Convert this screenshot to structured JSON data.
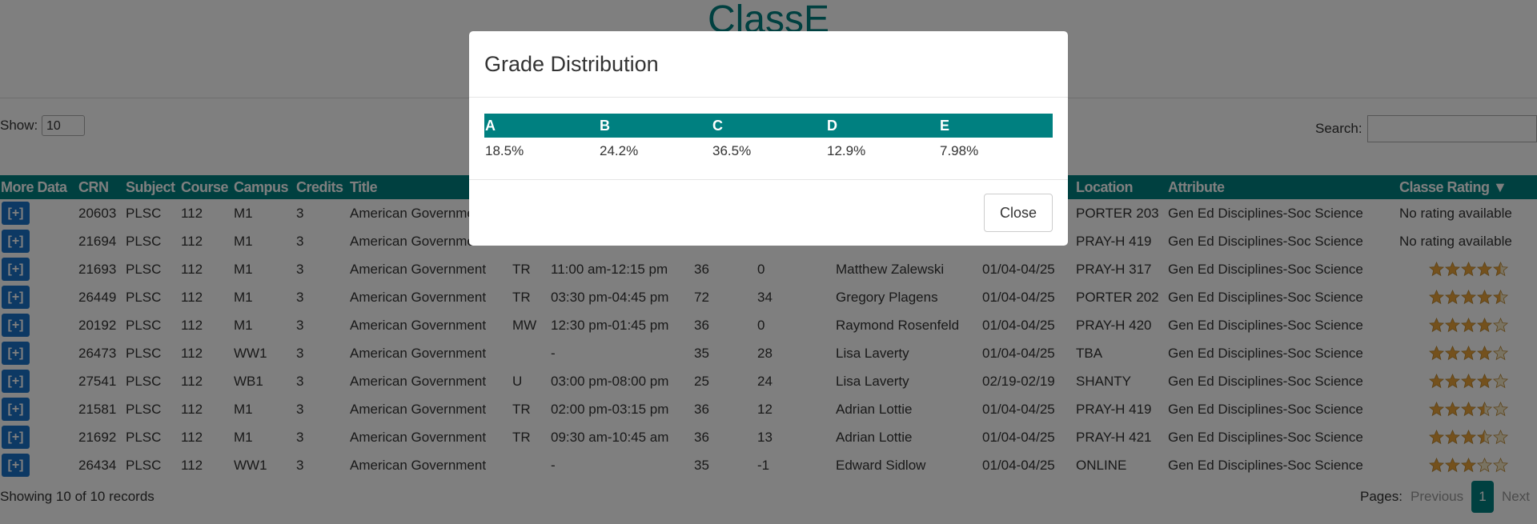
{
  "header": {
    "title": "ClassE"
  },
  "controls": {
    "show_label": "Show:",
    "show_value": "10",
    "search_label": "Search:"
  },
  "table": {
    "columns": [
      "More Data",
      "CRN",
      "Subject",
      "Course",
      "Campus",
      "Credits",
      "Title",
      null,
      null,
      null,
      null,
      null,
      null,
      "Location",
      "Attribute",
      "Classe Rating ▼"
    ],
    "rows": [
      [
        "[+]",
        "20603",
        "PLSC",
        "112",
        "M1",
        "3",
        "American Government",
        null,
        null,
        null,
        null,
        null,
        null,
        "PORTER 203",
        "Gen Ed Disciplines-Soc Science",
        "No rating available"
      ],
      [
        "[+]",
        "21694",
        "PLSC",
        "112",
        "M1",
        "3",
        "American Government",
        null,
        null,
        null,
        null,
        null,
        null,
        "PRAY-H 419",
        "Gen Ed Disciplines-Soc Science",
        "No rating available"
      ],
      [
        "[+]",
        "21693",
        "PLSC",
        "112",
        "M1",
        "3",
        "American Government",
        "TR",
        "11:00 am-12:15 pm",
        "36",
        "0",
        "Matthew Zalewski",
        "01/04-04/25",
        "PRAY-H 317",
        "Gen Ed Disciplines-Soc Science",
        4.5
      ],
      [
        "[+]",
        "26449",
        "PLSC",
        "112",
        "M1",
        "3",
        "American Government",
        "TR",
        "03:30 pm-04:45 pm",
        "72",
        "34",
        "Gregory Plagens",
        "01/04-04/25",
        "PORTER 202",
        "Gen Ed Disciplines-Soc Science",
        4.5
      ],
      [
        "[+]",
        "20192",
        "PLSC",
        "112",
        "M1",
        "3",
        "American Government",
        "MW",
        "12:30 pm-01:45 pm",
        "36",
        "0",
        "Raymond Rosenfeld",
        "01/04-04/25",
        "PRAY-H 420",
        "Gen Ed Disciplines-Soc Science",
        4
      ],
      [
        "[+]",
        "26473",
        "PLSC",
        "112",
        "WW1",
        "3",
        "American Government",
        null,
        "-",
        "35",
        "28",
        "Lisa Laverty",
        "01/04-04/25",
        "TBA",
        "Gen Ed Disciplines-Soc Science",
        4
      ],
      [
        "[+]",
        "27541",
        "PLSC",
        "112",
        "WB1",
        "3",
        "American Government",
        "U",
        "03:00 pm-08:00 pm",
        "25",
        "24",
        "Lisa Laverty",
        "02/19-02/19",
        "SHANTY",
        "Gen Ed Disciplines-Soc Science",
        4
      ],
      [
        "[+]",
        "21581",
        "PLSC",
        "112",
        "M1",
        "3",
        "American Government",
        "TR",
        "02:00 pm-03:15 pm",
        "36",
        "12",
        "Adrian Lottie",
        "01/04-04/25",
        "PRAY-H 419",
        "Gen Ed Disciplines-Soc Science",
        3.5
      ],
      [
        "[+]",
        "21692",
        "PLSC",
        "112",
        "M1",
        "3",
        "American Government",
        "TR",
        "09:30 am-10:45 am",
        "36",
        "13",
        "Adrian Lottie",
        "01/04-04/25",
        "PRAY-H 421",
        "Gen Ed Disciplines-Soc Science",
        3.5
      ],
      [
        "[+]",
        "26434",
        "PLSC",
        "112",
        "WW1",
        "3",
        "American Government",
        null,
        "-",
        "35",
        "-1",
        "Edward Sidlow",
        "01/04-04/25",
        "ONLINE",
        "Gen Ed Disciplines-Soc Science",
        3
      ]
    ]
  },
  "footer": {
    "summary": "Showing 10 of 10 records",
    "pages_label": "Pages:",
    "previous": "Previous",
    "page": "1",
    "next": "Next"
  },
  "modal": {
    "title": "Grade Distribution",
    "grades": [
      "A",
      "B",
      "C",
      "D",
      "E"
    ],
    "percents": [
      "18.5%",
      "24.2%",
      "36.5%",
      "12.9%",
      "7.98%"
    ],
    "close": "Close"
  }
}
